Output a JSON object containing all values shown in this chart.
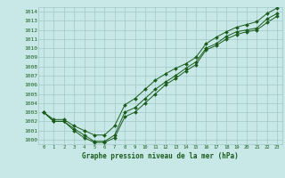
{
  "title": "Graphe pression niveau de la mer (hPa)",
  "x_labels": [
    "0",
    "1",
    "2",
    "3",
    "4",
    "5",
    "6",
    "7",
    "8",
    "9",
    "10",
    "11",
    "12",
    "13",
    "14",
    "15",
    "16",
    "17",
    "18",
    "19",
    "20",
    "21",
    "22",
    "23"
  ],
  "ylim": [
    999.5,
    1014.5
  ],
  "xlim": [
    -0.5,
    23.5
  ],
  "yticks": [
    1000,
    1001,
    1002,
    1003,
    1004,
    1005,
    1006,
    1007,
    1008,
    1009,
    1010,
    1011,
    1012,
    1013,
    1014
  ],
  "line1": [
    1003.0,
    1002.0,
    1002.0,
    1001.2,
    1000.5,
    999.8,
    999.8,
    1000.5,
    1003.0,
    1003.5,
    1004.5,
    1005.5,
    1006.3,
    1007.0,
    1007.8,
    1008.5,
    1010.0,
    1010.5,
    1011.3,
    1011.8,
    1012.0,
    1012.2,
    1013.2,
    1013.8
  ],
  "line2": [
    1003.0,
    1002.0,
    1002.0,
    1001.0,
    1000.2,
    999.7,
    999.7,
    1000.2,
    1002.5,
    1003.0,
    1004.0,
    1005.0,
    1006.0,
    1006.7,
    1007.5,
    1008.2,
    1009.8,
    1010.3,
    1011.0,
    1011.5,
    1011.8,
    1012.0,
    1012.8,
    1013.5
  ],
  "line3": [
    1003.0,
    1002.2,
    1002.2,
    1001.5,
    1001.0,
    1000.5,
    1000.5,
    1001.5,
    1003.8,
    1004.5,
    1005.5,
    1006.5,
    1007.2,
    1007.8,
    1008.3,
    1009.0,
    1010.5,
    1011.2,
    1011.8,
    1012.3,
    1012.6,
    1012.9,
    1013.8,
    1014.4
  ],
  "bg_color": "#c8e8e8",
  "line_color": "#1a5c1a",
  "grid_color": "#a0c8c8",
  "tick_color": "#1a5c1a",
  "title_color": "#1a5c1a"
}
